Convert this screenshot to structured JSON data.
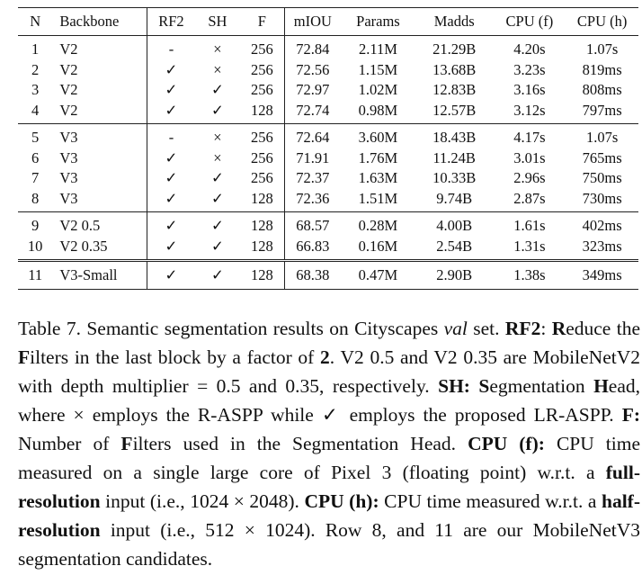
{
  "table": {
    "headers": [
      "N",
      "Backbone",
      "RF2",
      "SH",
      "F",
      "mIOU",
      "Params",
      "Madds",
      "CPU (f)",
      "CPU (h)"
    ],
    "groups": [
      [
        [
          "1",
          "V2",
          "-",
          "×",
          "256",
          "72.84",
          "2.11M",
          "21.29B",
          "4.20s",
          "1.07s"
        ],
        [
          "2",
          "V2",
          "✓",
          "×",
          "256",
          "72.56",
          "1.15M",
          "13.68B",
          "3.23s",
          "819ms"
        ],
        [
          "3",
          "V2",
          "✓",
          "✓",
          "256",
          "72.97",
          "1.02M",
          "12.83B",
          "3.16s",
          "808ms"
        ],
        [
          "4",
          "V2",
          "✓",
          "✓",
          "128",
          "72.74",
          "0.98M",
          "12.57B",
          "3.12s",
          "797ms"
        ]
      ],
      [
        [
          "5",
          "V3",
          "-",
          "×",
          "256",
          "72.64",
          "3.60M",
          "18.43B",
          "4.17s",
          "1.07s"
        ],
        [
          "6",
          "V3",
          "✓",
          "×",
          "256",
          "71.91",
          "1.76M",
          "11.24B",
          "3.01s",
          "765ms"
        ],
        [
          "7",
          "V3",
          "✓",
          "✓",
          "256",
          "72.37",
          "1.63M",
          "10.33B",
          "2.96s",
          "750ms"
        ],
        [
          "8",
          "V3",
          "✓",
          "✓",
          "128",
          "72.36",
          "1.51M",
          "9.74B",
          "2.87s",
          "730ms"
        ]
      ],
      [
        [
          "9",
          "V2 0.5",
          "✓",
          "✓",
          "128",
          "68.57",
          "0.28M",
          "4.00B",
          "1.61s",
          "402ms"
        ],
        [
          "10",
          "V2 0.35",
          "✓",
          "✓",
          "128",
          "66.83",
          "0.16M",
          "2.54B",
          "1.31s",
          "323ms"
        ]
      ],
      [
        [
          "11",
          "V3-Small",
          "✓",
          "✓",
          "128",
          "68.38",
          "0.47M",
          "2.90B",
          "1.38s",
          "349ms"
        ]
      ]
    ]
  },
  "caption": {
    "s01": "Table 7. Semantic segmentation results on Cityscapes ",
    "s02": "val",
    "s03": " set. ",
    "s04": "RF2",
    "s05": ": ",
    "s06": "R",
    "s07": "educe the ",
    "s08": "F",
    "s09": "ilters in the last block by a factor of ",
    "s10": "2",
    "s11": ". V2 0.5 and V2 0.35 are MobileNetV2 with depth multiplier = 0.5 and 0.35, respectively. ",
    "s12": "SH:",
    "s13": " ",
    "s14": "S",
    "s15": "egmentation ",
    "s16": "H",
    "s17": "ead, where × employs the R-ASPP while ✓ employs the proposed LR-ASPP. ",
    "s18": "F:",
    "s19": " Number of ",
    "s20": "F",
    "s21": "ilters used in the Segmentation Head. ",
    "s22": "CPU (f):",
    "s23": " CPU time measured on a single large core of Pixel 3 (floating point) w.r.t. a ",
    "s24": "full-resolution",
    "s25": " input (i.e., 1024 × 2048). ",
    "s26": "CPU (h):",
    "s27": " CPU time measured w.r.t. a ",
    "s28": "half-resolution",
    "s29": " input (i.e., 512 × 1024). Row 8, and 11 are our MobileNetV3 segmentation candidates."
  }
}
